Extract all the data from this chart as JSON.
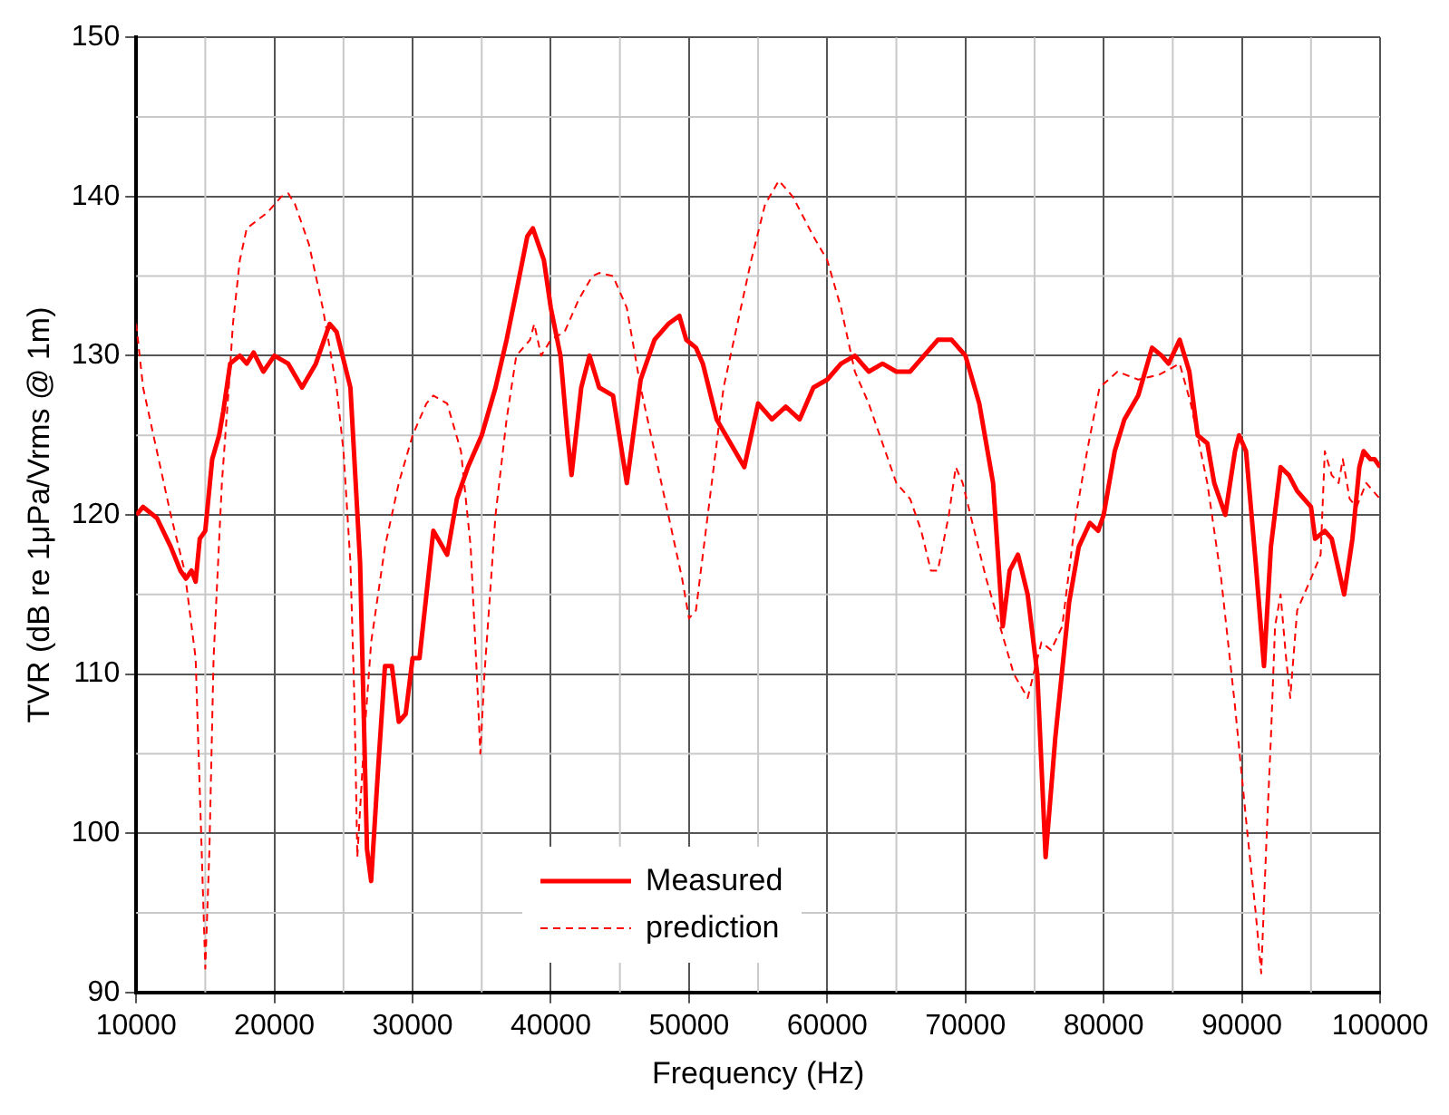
{
  "chart_data": {
    "type": "line",
    "xlabel": "Frequency (Hz)",
    "ylabel": "TVR (dB re 1μPa/Vrms @ 1m)",
    "xlim": [
      10000,
      100000
    ],
    "xticks": [
      10000,
      20000,
      30000,
      40000,
      50000,
      60000,
      70000,
      80000,
      90000,
      100000
    ],
    "ylim": [
      90,
      150
    ],
    "yticks": [
      90,
      100,
      110,
      120,
      130,
      140,
      150
    ],
    "grid": true,
    "legend": "bottom",
    "marker": "none",
    "series": [
      {
        "name": "Measured",
        "color": "#ff0000",
        "line_style": "solid",
        "x": [
          10000,
          10500,
          11500,
          12500,
          13200,
          13600,
          14000,
          14300,
          14600,
          15000,
          15500,
          16000,
          16300,
          16800,
          17500,
          18000,
          18500,
          19200,
          20000,
          21000,
          22000,
          23000,
          24000,
          24500,
          25500,
          26200,
          26700,
          27000,
          27500,
          28000,
          28500,
          29000,
          29500,
          30000,
          30500,
          31000,
          31500,
          32500,
          33200,
          34000,
          35000,
          36000,
          36800,
          37500,
          38300,
          38700,
          39500,
          40000,
          40700,
          41200,
          41500,
          42200,
          42800,
          43500,
          44500,
          45500,
          46500,
          47500,
          48500,
          49300,
          49800,
          50500,
          51000,
          52000,
          53000,
          54000,
          55000,
          56000,
          57000,
          58000,
          59000,
          60000,
          61000,
          62000,
          63000,
          64000,
          65000,
          66000,
          67000,
          68000,
          69000,
          70000,
          71000,
          72000,
          72700,
          73200,
          73800,
          74500,
          75200,
          75800,
          76500,
          77500,
          78200,
          79000,
          79600,
          80000,
          80800,
          81500,
          82500,
          83500,
          84200,
          84700,
          85500,
          86200,
          86800,
          87500,
          88000,
          88800,
          89500,
          89800,
          90300,
          91000,
          91600,
          92100,
          92800,
          93400,
          94000,
          95000,
          95300,
          96000,
          96500,
          97400,
          98000,
          98500,
          98800,
          99300,
          99600,
          100000
        ],
        "values": [
          120,
          120.5,
          119.8,
          118,
          116.5,
          116,
          116.5,
          115.8,
          118.5,
          119,
          123.5,
          125,
          126.5,
          129.5,
          130,
          129.5,
          130.2,
          129,
          130,
          129.5,
          128,
          129.5,
          132,
          131.5,
          128,
          117,
          99,
          97,
          104,
          110.5,
          110.5,
          107,
          107.5,
          111,
          111,
          115,
          119,
          117.5,
          121,
          123,
          125,
          128,
          131,
          134,
          137.5,
          138,
          136,
          133,
          130,
          125,
          122.5,
          128,
          130,
          128,
          127.5,
          122,
          128.5,
          131,
          132,
          132.5,
          131,
          130.5,
          129.5,
          126,
          124.5,
          123,
          127,
          126,
          126.8,
          126,
          128,
          128.5,
          129.5,
          130,
          129,
          129.5,
          129,
          129,
          130,
          131,
          131,
          130,
          127,
          122,
          113,
          116.5,
          117.5,
          115,
          110,
          98.5,
          106,
          114.5,
          118,
          119.5,
          119,
          120,
          124,
          126,
          127.5,
          130.5,
          130,
          129.5,
          131,
          129,
          125,
          124.5,
          122,
          120,
          124,
          125,
          124,
          117,
          110.5,
          118,
          123,
          122.5,
          121.5,
          120.5,
          118.5,
          119,
          118.5,
          115,
          118.5,
          123,
          124,
          123.5,
          123.5,
          123
        ]
      },
      {
        "name": "prediction",
        "color": "#ff0000",
        "line_style": "dashed",
        "x": [
          10000,
          10500,
          11500,
          12500,
          13500,
          14300,
          14700,
          15000,
          15300,
          15600,
          16200,
          16700,
          17000,
          17500,
          18000,
          19500,
          20500,
          21000,
          21500,
          22500,
          23500,
          24500,
          25000,
          25500,
          25800,
          26000,
          26500,
          27000,
          28000,
          29000,
          30000,
          31000,
          31500,
          32500,
          33500,
          34200,
          34700,
          34900,
          35200,
          36000,
          36800,
          37500,
          38500,
          38800,
          39300,
          40000,
          41000,
          42000,
          43000,
          43500,
          44500,
          45500,
          46500,
          47500,
          48500,
          49500,
          50000,
          50500,
          51500,
          52500,
          53500,
          54500,
          55500,
          56500,
          57500,
          59000,
          60000,
          61000,
          62000,
          63000,
          64000,
          65000,
          66000,
          66800,
          67500,
          68000,
          68800,
          69300,
          69800,
          70500,
          71500,
          72500,
          73500,
          74500,
          75500,
          76200,
          77000,
          78000,
          78800,
          79700,
          81000,
          82500,
          84000,
          85500,
          86300,
          87500,
          88500,
          89500,
          90400,
          91000,
          91400,
          91800,
          92100,
          92400,
          92800,
          93200,
          93500,
          94000,
          95000,
          95700,
          96000,
          96500,
          97000,
          97300,
          97800,
          98300,
          99000,
          100000
        ],
        "values": [
          132,
          128,
          124,
          120,
          116.5,
          111,
          100,
          91.5,
          99,
          111,
          122,
          128,
          132,
          136,
          138,
          139,
          140,
          140.2,
          139.5,
          137,
          133,
          128,
          124,
          117,
          108,
          98.5,
          106,
          112,
          118,
          122,
          125,
          127,
          127.5,
          127,
          124,
          118,
          109,
          105,
          110,
          120,
          126,
          130,
          131,
          132,
          130,
          131,
          131.5,
          133.5,
          135,
          135.2,
          135,
          133,
          128,
          124,
          120,
          116,
          113.5,
          114,
          121,
          128,
          132,
          136,
          139.5,
          141,
          140,
          137.5,
          136,
          133,
          129,
          127,
          124.5,
          122,
          121,
          119,
          116.5,
          116.5,
          120,
          123,
          122,
          119.5,
          116,
          113,
          110,
          108.5,
          112,
          111.5,
          113,
          120,
          124,
          128,
          129,
          128.5,
          128.8,
          129.5,
          127,
          122,
          116,
          108,
          100,
          95,
          91.2,
          100,
          106,
          113,
          115,
          111,
          108.5,
          114,
          116,
          117.5,
          124,
          122.5,
          122,
          123.5,
          121,
          120.5,
          122,
          121
        ]
      }
    ]
  }
}
